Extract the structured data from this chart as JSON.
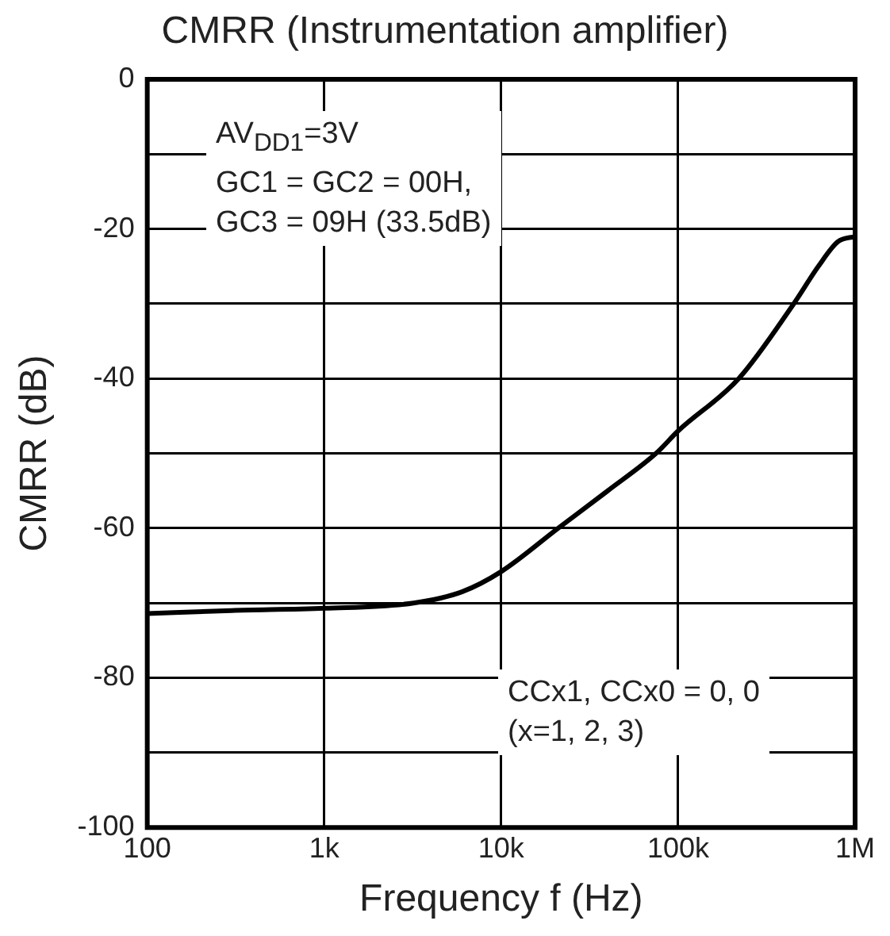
{
  "chart_data": {
    "type": "line",
    "title": "CMRR (Instrumentation amplifier)",
    "xlabel": "Frequency f (Hz)",
    "ylabel": "CMRR (dB)",
    "x": [
      100,
      300,
      1000,
      3200,
      6000,
      10000,
      21000,
      40000,
      75000,
      100000,
      220000,
      450000,
      620000,
      800000,
      1000000
    ],
    "series": [
      {
        "color": "#000000",
        "values": [
          -71.4,
          -71,
          -70.7,
          -70,
          -68.5,
          -65.8,
          -60,
          -55,
          -50,
          -47,
          -40,
          -30,
          -25,
          -21.7,
          -21
        ]
      }
    ],
    "log": "x",
    "xlim": [
      100,
      1000000
    ],
    "xticks": [
      {
        "value": 100,
        "label": "100"
      },
      {
        "value": 1000,
        "label": "1k"
      },
      {
        "value": 10000,
        "label": "10k"
      },
      {
        "value": 100000,
        "label": "100k"
      },
      {
        "value": 1000000,
        "label": "1M"
      }
    ],
    "ylim": [
      -100,
      0
    ],
    "yticks": [
      -100,
      {
        "value": -90,
        "label": null
      },
      -80,
      {
        "value": -70,
        "label": null
      },
      -60,
      {
        "value": -50,
        "label": null
      },
      -40,
      {
        "value": -30,
        "label": null
      },
      -20,
      {
        "value": -10,
        "label": null
      },
      0
    ],
    "grid": true,
    "legend": false,
    "marker": "none",
    "line_style": "solid",
    "annotations": [
      "AV$_{DD1}$=3V\nGC1 = GC2 = 00H,\nGC3 = 09H (33.5dB)",
      "CCx1, CCx0 = 0, 0\n(x=1, 2, 3)"
    ]
  }
}
